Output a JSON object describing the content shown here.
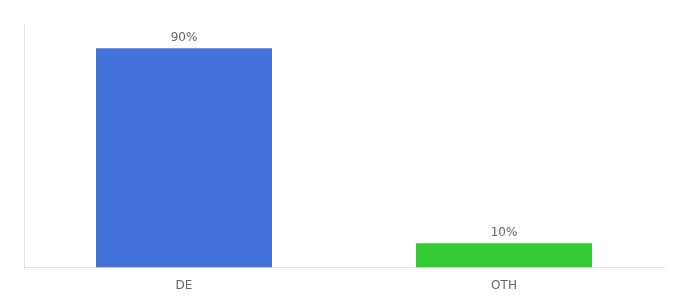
{
  "chart_data": {
    "type": "bar",
    "categories": [
      "DE",
      "OTH"
    ],
    "values": [
      90,
      10
    ],
    "value_labels": [
      "90%",
      "10%"
    ],
    "colors": [
      "#4472db",
      "#33cc33"
    ],
    "ylim": [
      0,
      100
    ],
    "grid": false,
    "data_labels": true,
    "tick_labels": "x"
  }
}
